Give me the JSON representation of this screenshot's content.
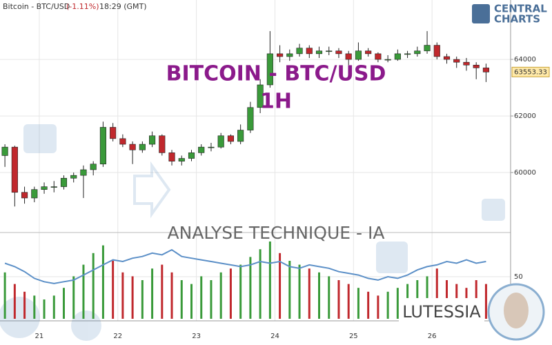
{
  "chart_data": {
    "type": "candlestick",
    "header": {
      "symbol": "Bitcoin - BTC/USD",
      "change": "(-1.11%)",
      "time": "18:29 (GMT)"
    },
    "title": "BITCOIN - BTC/USD",
    "subtitle": "1H",
    "annotation": "ANALYSE TECHNIQUE - IA",
    "brand": "LUTESSIA",
    "logo": [
      "CENTRAL",
      "CHARTS"
    ],
    "up_color": "#3a9a3a",
    "down_color": "#c0282d",
    "grid": true,
    "xlim": [
      20.5,
      27.0
    ],
    "xticks": [
      21,
      22,
      23,
      24,
      25,
      26
    ],
    "ylim": [
      58050,
      66100
    ],
    "yticks": [
      60000,
      62000,
      64000
    ],
    "x": [
      20.5625,
      20.6875,
      20.8125,
      20.9375,
      21.0625,
      21.1875,
      21.3125,
      21.4375,
      21.5625,
      21.6875,
      21.8125,
      21.9375,
      22.0625,
      22.1875,
      22.3125,
      22.4375,
      22.5625,
      22.6875,
      22.8125,
      22.9375,
      23.0625,
      23.1875,
      23.3125,
      23.4375,
      23.5625,
      23.6875,
      23.8125,
      23.9375,
      24.0625,
      24.1875,
      24.3125,
      24.4375,
      24.5625,
      24.6875,
      24.8125,
      24.9375,
      25.0625,
      25.1875,
      25.3125,
      25.4375,
      25.5625,
      25.6875,
      25.8125,
      25.9375,
      26.0625,
      26.1875,
      26.3125,
      26.4375,
      26.5625,
      26.6875
    ],
    "ohlc": [
      [
        60600,
        61000,
        60200,
        60900
      ],
      [
        60900,
        60950,
        58800,
        59300
      ],
      [
        59300,
        59500,
        58900,
        59100
      ],
      [
        59100,
        59500,
        58950,
        59400
      ],
      [
        59400,
        59650,
        59250,
        59500
      ],
      [
        59500,
        59700,
        59300,
        59500
      ],
      [
        59500,
        59900,
        59400,
        59800
      ],
      [
        59800,
        60000,
        59650,
        59900
      ],
      [
        59900,
        60250,
        59100,
        60100
      ],
      [
        60100,
        60400,
        59900,
        60300
      ],
      [
        60300,
        61800,
        60200,
        61600
      ],
      [
        61600,
        61750,
        61100,
        61200
      ],
      [
        61200,
        61350,
        60900,
        61000
      ],
      [
        61000,
        61100,
        60300,
        60800
      ],
      [
        60800,
        61100,
        60700,
        61000
      ],
      [
        61000,
        61450,
        60900,
        61300
      ],
      [
        61300,
        61350,
        60600,
        60700
      ],
      [
        60700,
        60800,
        60250,
        60400
      ],
      [
        60400,
        60600,
        60250,
        60500
      ],
      [
        60500,
        60800,
        60400,
        60700
      ],
      [
        60700,
        61000,
        60600,
        60900
      ],
      [
        60900,
        61050,
        60750,
        60900
      ],
      [
        60900,
        61400,
        60850,
        61300
      ],
      [
        61300,
        61350,
        61000,
        61100
      ],
      [
        61100,
        61700,
        61000,
        61500
      ],
      [
        61500,
        62500,
        61400,
        62300
      ],
      [
        62300,
        63300,
        62100,
        63100
      ],
      [
        63100,
        65000,
        63000,
        64200
      ],
      [
        64200,
        64500,
        63900,
        64100
      ],
      [
        64100,
        64350,
        63950,
        64200
      ],
      [
        64200,
        64550,
        64100,
        64400
      ],
      [
        64400,
        64500,
        64050,
        64200
      ],
      [
        64200,
        64450,
        64050,
        64300
      ],
      [
        64300,
        64450,
        64150,
        64300
      ],
      [
        64300,
        64400,
        64050,
        64200
      ],
      [
        64200,
        64300,
        63800,
        64000
      ],
      [
        64000,
        64600,
        63950,
        64300
      ],
      [
        64300,
        64400,
        64100,
        64200
      ],
      [
        64200,
        64250,
        63900,
        64000
      ],
      [
        64000,
        64150,
        63900,
        64000
      ],
      [
        64000,
        64350,
        63950,
        64200
      ],
      [
        64200,
        64300,
        64050,
        64200
      ],
      [
        64200,
        64450,
        64100,
        64300
      ],
      [
        64300,
        65000,
        64200,
        64500
      ],
      [
        64500,
        64600,
        64000,
        64100
      ],
      [
        64100,
        64200,
        63850,
        64000
      ],
      [
        64000,
        64100,
        63700,
        63900
      ],
      [
        63900,
        64050,
        63600,
        63800
      ],
      [
        63800,
        63900,
        63300,
        63700
      ],
      [
        63700,
        63850,
        63200,
        63553.33
      ]
    ],
    "volume": [
      60,
      45,
      35,
      30,
      25,
      30,
      40,
      55,
      70,
      85,
      95,
      75,
      60,
      55,
      50,
      65,
      70,
      60,
      50,
      45,
      55,
      50,
      60,
      65,
      70,
      80,
      90,
      100,
      85,
      75,
      70,
      65,
      60,
      55,
      50,
      45,
      40,
      35,
      30,
      35,
      40,
      45,
      50,
      55,
      65,
      50,
      45,
      40,
      50,
      45
    ],
    "indicator": {
      "values": [
        58,
        56,
        53,
        49,
        47,
        46,
        47,
        48,
        51,
        54,
        57,
        60,
        59,
        61,
        62,
        64,
        63,
        66,
        62,
        61,
        60,
        59,
        58,
        57,
        56,
        57,
        59,
        58,
        59,
        56,
        55,
        57,
        56,
        55,
        53,
        52,
        51,
        49,
        48,
        50,
        49,
        51,
        54,
        56,
        57,
        59,
        58,
        60,
        58,
        59
      ],
      "color": "#5b8fc7",
      "y2lim": [
        25,
        75
      ],
      "y2ticks": [
        50
      ]
    }
  }
}
